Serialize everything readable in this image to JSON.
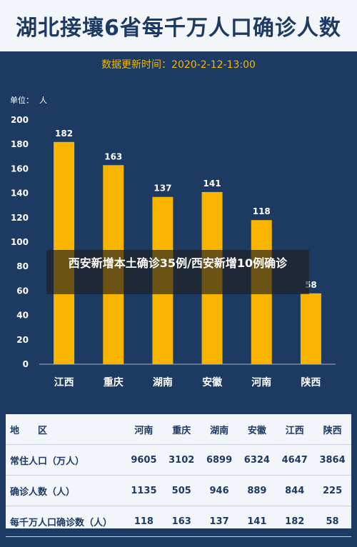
{
  "header": {
    "title": "湖北接壤6省每千万人口确诊人数",
    "update_time": "数据更新时间：2020-2-12-13:00"
  },
  "unit": {
    "label": "单位：",
    "value": "人"
  },
  "overlay": {
    "text": "西安新增本土确诊35例/西安新增10例确诊"
  },
  "chart_data": {
    "type": "bar",
    "title": "湖北接壤6省每千万人口确诊人数",
    "categories": [
      "江西",
      "重庆",
      "湖南",
      "安徽",
      "河南",
      "陕西"
    ],
    "values": [
      182,
      163,
      137,
      141,
      118,
      58
    ],
    "ylim": [
      0,
      200
    ],
    "yticks": [
      0,
      20,
      40,
      60,
      80,
      100,
      120,
      140,
      160,
      180,
      200
    ],
    "grid": false,
    "colors": {
      "bar": "#f7b500",
      "axis_text": "#ffffff",
      "background": "#1d3a63"
    }
  },
  "table": {
    "header": [
      "地　　区",
      "河南",
      "重庆",
      "湖南",
      "安徽",
      "江西",
      "陕西"
    ],
    "rows": [
      [
        "常住人口（万人）",
        "9605",
        "3102",
        "6899",
        "6324",
        "4647",
        "3864"
      ],
      [
        "确诊人数（人）",
        "1135",
        "505",
        "946",
        "889",
        "844",
        "225"
      ],
      [
        "每千万人口确诊数（人）",
        "118",
        "163",
        "137",
        "141",
        "182",
        "58"
      ]
    ]
  }
}
